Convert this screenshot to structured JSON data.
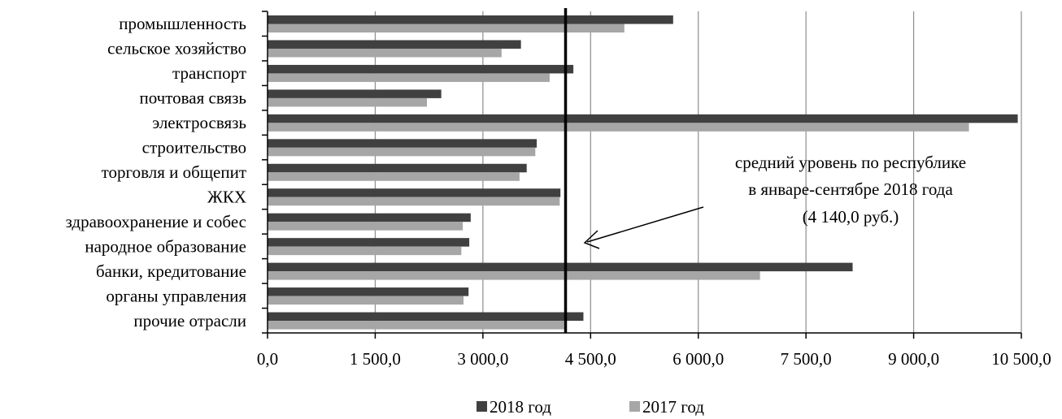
{
  "chart_data": {
    "type": "bar",
    "orientation": "horizontal",
    "categories": [
      "промышленность",
      "сельское хозяйство",
      "транспорт",
      "почтовая связь",
      "электросвязь",
      "строительство",
      "торговля и общепит",
      "ЖКХ",
      "здравоохранение и собес",
      "народное образование",
      "банки, кредитование",
      "органы управления",
      "прочие отрасли"
    ],
    "series": [
      {
        "name": "2018 год",
        "color": "#404040",
        "values": [
          5650,
          3530,
          4260,
          2420,
          10450,
          3750,
          3610,
          4080,
          2830,
          2810,
          8150,
          2800,
          4400
        ]
      },
      {
        "name": "2017 год",
        "color": "#a6a6a6",
        "values": [
          4970,
          3260,
          3930,
          2220,
          9770,
          3730,
          3510,
          4070,
          2720,
          2700,
          6860,
          2730,
          4130
        ]
      }
    ],
    "x_ticks": [
      "0,0",
      "1 500,0",
      "3 000,0",
      "4 500,0",
      "6 000,0",
      "7 500,0",
      "9 000,0",
      "10 500,0"
    ],
    "xlim": [
      0,
      10500
    ],
    "grid": "vertical",
    "legend_position": "bottom",
    "reference_line": {
      "value": 4140
    },
    "annotation": {
      "lines": [
        "средний уровень по республике",
        "в январе-сентябре 2018 года",
        "(4 140,0 руб.)"
      ]
    }
  }
}
